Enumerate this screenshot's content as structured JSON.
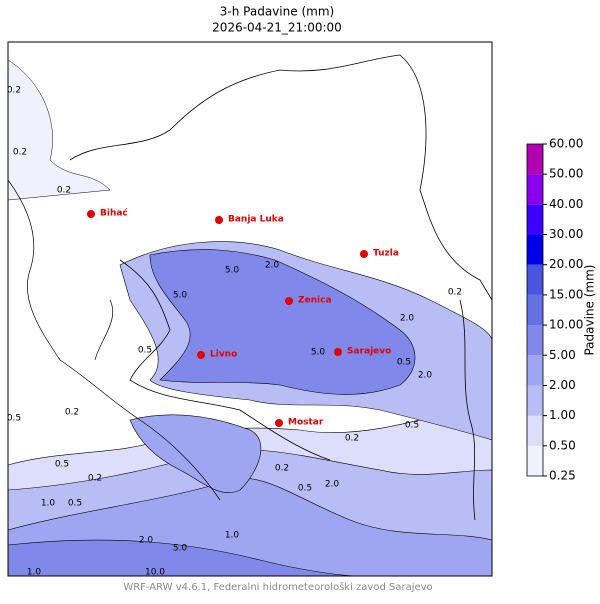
{
  "header": {
    "title": "3-h Padavine (mm)",
    "subtitle": "2026-04-21_21:00:00"
  },
  "cities": [
    "Bihać",
    "Banja Luka",
    "Tuzla",
    "Zenica",
    "Livno",
    "Sarajevo",
    "Mostar"
  ],
  "contour_labels": [
    "0.2",
    "0.2",
    "0.2",
    "5.0",
    "2.0",
    "5.0",
    "0.2",
    "2.0",
    "5.0",
    "0.5",
    "0.5",
    "2.0",
    "0.2",
    "0.5",
    "0.5",
    "0.2",
    "2.0",
    "1.0",
    "0.5",
    "1.0",
    "2.0",
    "5.0",
    "1.0",
    "10.0",
    "0.5",
    "0.2",
    "0.5",
    "0.2"
  ],
  "colorbar": {
    "label": "Padavine (mm)",
    "ticks": [
      {
        "value": 0.25,
        "label": "0.25"
      },
      {
        "value": 0.5,
        "label": "0.50"
      },
      {
        "value": 1,
        "label": "1.00"
      },
      {
        "value": 2,
        "label": "2.00"
      },
      {
        "value": 5,
        "label": "5.00"
      },
      {
        "value": 10,
        "label": "10.00"
      },
      {
        "value": 15,
        "label": "15.00"
      },
      {
        "value": 20,
        "label": "20.00"
      },
      {
        "value": 30,
        "label": "30.00"
      },
      {
        "value": 40,
        "label": "40.00"
      },
      {
        "value": 50,
        "label": "50.00"
      },
      {
        "value": 60,
        "label": "60.00"
      }
    ],
    "colors": [
      "#f0f0ff",
      "#dcdefb",
      "#b8bdf6",
      "#9ea6f1",
      "#8089ea",
      "#6670e5",
      "#4a55df",
      "#0000e6",
      "#3c00ff",
      "#8a00ee",
      "#b000b0"
    ]
  },
  "footer": "WRF-ARW v4.6.1, Federalni hidrometeorološki zavod Sarajevo"
}
